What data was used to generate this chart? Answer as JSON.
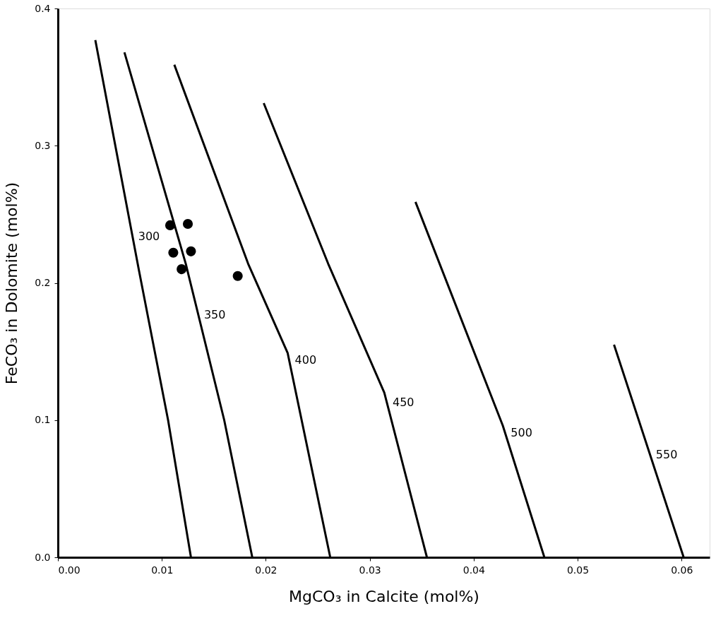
{
  "chart_data": {
    "type": "line",
    "xlabel": "MgCO₃ in Calcite (mol%)",
    "ylabel": "FeCO₃ in Dolomite (mol%)",
    "xlim": [
      0,
      0.0627
    ],
    "ylim": [
      0,
      0.4
    ],
    "xticks": [
      {
        "value": 0,
        "label": "0.00"
      },
      {
        "value": 0.01,
        "label": "0.01"
      },
      {
        "value": 0.02,
        "label": "0.02"
      },
      {
        "value": 0.03,
        "label": "0.03"
      },
      {
        "value": 0.04,
        "label": "0.04"
      },
      {
        "value": 0.05,
        "label": "0.05"
      },
      {
        "value": 0.06,
        "label": "0.06"
      }
    ],
    "yticks": [
      {
        "value": 0,
        "label": "0.0"
      },
      {
        "value": 0.1,
        "label": "0.1"
      },
      {
        "value": 0.2,
        "label": "0.2"
      },
      {
        "value": 0.3,
        "label": "0.3"
      },
      {
        "value": 0.4,
        "label": "0.4"
      }
    ],
    "grid": false,
    "legend": false,
    "line_style": "solid",
    "series": [
      {
        "name": "300",
        "color": "#000000",
        "x": [
          0.0036,
          0.0078,
          0.0106,
          0.0128
        ],
        "values": [
          0.377,
          0.209,
          0.1,
          0
        ]
      },
      {
        "name": "350",
        "color": "#000000",
        "x": [
          0.0064,
          0.0123,
          0.016,
          0.0187
        ],
        "values": [
          0.368,
          0.214,
          0.1,
          0
        ]
      },
      {
        "name": "400",
        "color": "#000000",
        "x": [
          0.0112,
          0.0183,
          0.0221,
          0.0262
        ],
        "values": [
          0.359,
          0.214,
          0.149,
          0
        ]
      },
      {
        "name": "450",
        "color": "#000000",
        "x": [
          0.0198,
          0.026,
          0.0314,
          0.0355
        ],
        "values": [
          0.331,
          0.214,
          0.12,
          0
        ]
      },
      {
        "name": "500",
        "color": "#000000",
        "x": [
          0.0344,
          0.0428,
          0.0468
        ],
        "values": [
          0.259,
          0.096,
          0
        ]
      },
      {
        "name": "550",
        "color": "#000000",
        "x": [
          0.0535,
          0.0602
        ],
        "values": [
          0.155,
          0
        ]
      },
      {
        "type": "scatter",
        "color": "#000000",
        "marker": "circle",
        "x": [
          0.0108,
          0.0125,
          0.0111,
          0.0128,
          0.0119,
          0.0173
        ],
        "values": [
          0.242,
          0.243,
          0.222,
          0.223,
          0.21,
          0.205
        ]
      }
    ]
  }
}
